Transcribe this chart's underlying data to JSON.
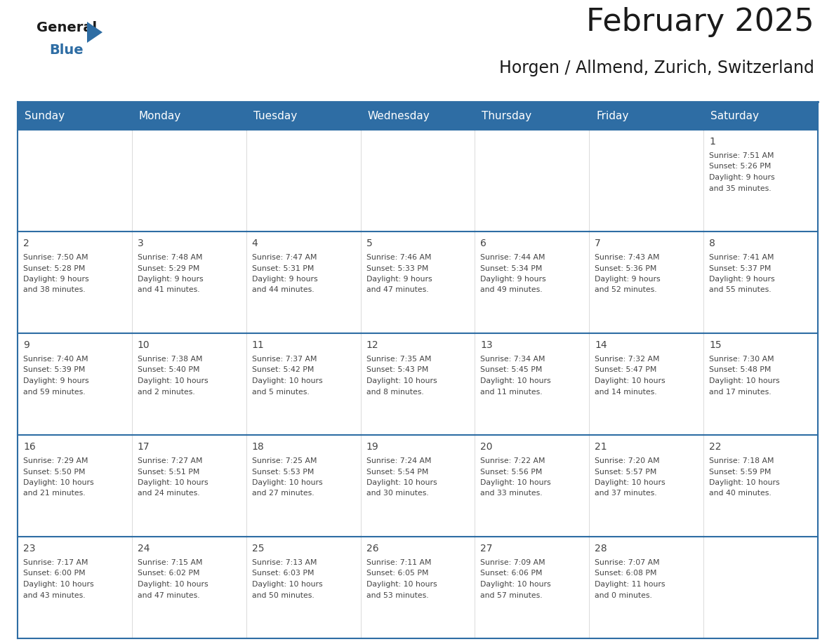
{
  "title": "February 2025",
  "subtitle": "Horgen / Allmend, Zurich, Switzerland",
  "header_bg": "#2E6DA4",
  "header_text": "#FFFFFF",
  "cell_bg": "#FFFFFF",
  "border_color": "#2E6DA4",
  "text_color": "#444444",
  "days_of_week": [
    "Sunday",
    "Monday",
    "Tuesday",
    "Wednesday",
    "Thursday",
    "Friday",
    "Saturday"
  ],
  "calendar": [
    [
      {
        "day": null,
        "sunrise": null,
        "sunset": null,
        "daylight": null
      },
      {
        "day": null,
        "sunrise": null,
        "sunset": null,
        "daylight": null
      },
      {
        "day": null,
        "sunrise": null,
        "sunset": null,
        "daylight": null
      },
      {
        "day": null,
        "sunrise": null,
        "sunset": null,
        "daylight": null
      },
      {
        "day": null,
        "sunrise": null,
        "sunset": null,
        "daylight": null
      },
      {
        "day": null,
        "sunrise": null,
        "sunset": null,
        "daylight": null
      },
      {
        "day": 1,
        "sunrise": "7:51 AM",
        "sunset": "5:26 PM",
        "daylight": "9 hours\nand 35 minutes."
      }
    ],
    [
      {
        "day": 2,
        "sunrise": "7:50 AM",
        "sunset": "5:28 PM",
        "daylight": "9 hours\nand 38 minutes."
      },
      {
        "day": 3,
        "sunrise": "7:48 AM",
        "sunset": "5:29 PM",
        "daylight": "9 hours\nand 41 minutes."
      },
      {
        "day": 4,
        "sunrise": "7:47 AM",
        "sunset": "5:31 PM",
        "daylight": "9 hours\nand 44 minutes."
      },
      {
        "day": 5,
        "sunrise": "7:46 AM",
        "sunset": "5:33 PM",
        "daylight": "9 hours\nand 47 minutes."
      },
      {
        "day": 6,
        "sunrise": "7:44 AM",
        "sunset": "5:34 PM",
        "daylight": "9 hours\nand 49 minutes."
      },
      {
        "day": 7,
        "sunrise": "7:43 AM",
        "sunset": "5:36 PM",
        "daylight": "9 hours\nand 52 minutes."
      },
      {
        "day": 8,
        "sunrise": "7:41 AM",
        "sunset": "5:37 PM",
        "daylight": "9 hours\nand 55 minutes."
      }
    ],
    [
      {
        "day": 9,
        "sunrise": "7:40 AM",
        "sunset": "5:39 PM",
        "daylight": "9 hours\nand 59 minutes."
      },
      {
        "day": 10,
        "sunrise": "7:38 AM",
        "sunset": "5:40 PM",
        "daylight": "10 hours\nand 2 minutes."
      },
      {
        "day": 11,
        "sunrise": "7:37 AM",
        "sunset": "5:42 PM",
        "daylight": "10 hours\nand 5 minutes."
      },
      {
        "day": 12,
        "sunrise": "7:35 AM",
        "sunset": "5:43 PM",
        "daylight": "10 hours\nand 8 minutes."
      },
      {
        "day": 13,
        "sunrise": "7:34 AM",
        "sunset": "5:45 PM",
        "daylight": "10 hours\nand 11 minutes."
      },
      {
        "day": 14,
        "sunrise": "7:32 AM",
        "sunset": "5:47 PM",
        "daylight": "10 hours\nand 14 minutes."
      },
      {
        "day": 15,
        "sunrise": "7:30 AM",
        "sunset": "5:48 PM",
        "daylight": "10 hours\nand 17 minutes."
      }
    ],
    [
      {
        "day": 16,
        "sunrise": "7:29 AM",
        "sunset": "5:50 PM",
        "daylight": "10 hours\nand 21 minutes."
      },
      {
        "day": 17,
        "sunrise": "7:27 AM",
        "sunset": "5:51 PM",
        "daylight": "10 hours\nand 24 minutes."
      },
      {
        "day": 18,
        "sunrise": "7:25 AM",
        "sunset": "5:53 PM",
        "daylight": "10 hours\nand 27 minutes."
      },
      {
        "day": 19,
        "sunrise": "7:24 AM",
        "sunset": "5:54 PM",
        "daylight": "10 hours\nand 30 minutes."
      },
      {
        "day": 20,
        "sunrise": "7:22 AM",
        "sunset": "5:56 PM",
        "daylight": "10 hours\nand 33 minutes."
      },
      {
        "day": 21,
        "sunrise": "7:20 AM",
        "sunset": "5:57 PM",
        "daylight": "10 hours\nand 37 minutes."
      },
      {
        "day": 22,
        "sunrise": "7:18 AM",
        "sunset": "5:59 PM",
        "daylight": "10 hours\nand 40 minutes."
      }
    ],
    [
      {
        "day": 23,
        "sunrise": "7:17 AM",
        "sunset": "6:00 PM",
        "daylight": "10 hours\nand 43 minutes."
      },
      {
        "day": 24,
        "sunrise": "7:15 AM",
        "sunset": "6:02 PM",
        "daylight": "10 hours\nand 47 minutes."
      },
      {
        "day": 25,
        "sunrise": "7:13 AM",
        "sunset": "6:03 PM",
        "daylight": "10 hours\nand 50 minutes."
      },
      {
        "day": 26,
        "sunrise": "7:11 AM",
        "sunset": "6:05 PM",
        "daylight": "10 hours\nand 53 minutes."
      },
      {
        "day": 27,
        "sunrise": "7:09 AM",
        "sunset": "6:06 PM",
        "daylight": "10 hours\nand 57 minutes."
      },
      {
        "day": 28,
        "sunrise": "7:07 AM",
        "sunset": "6:08 PM",
        "daylight": "11 hours\nand 0 minutes."
      },
      {
        "day": null,
        "sunrise": null,
        "sunset": null,
        "daylight": null
      }
    ]
  ],
  "header_fontsize": 11,
  "day_number_fontsize": 10,
  "cell_text_fontsize": 7.8,
  "title_fontsize": 32,
  "subtitle_fontsize": 17,
  "logo_general_fontsize": 14,
  "logo_blue_fontsize": 14
}
